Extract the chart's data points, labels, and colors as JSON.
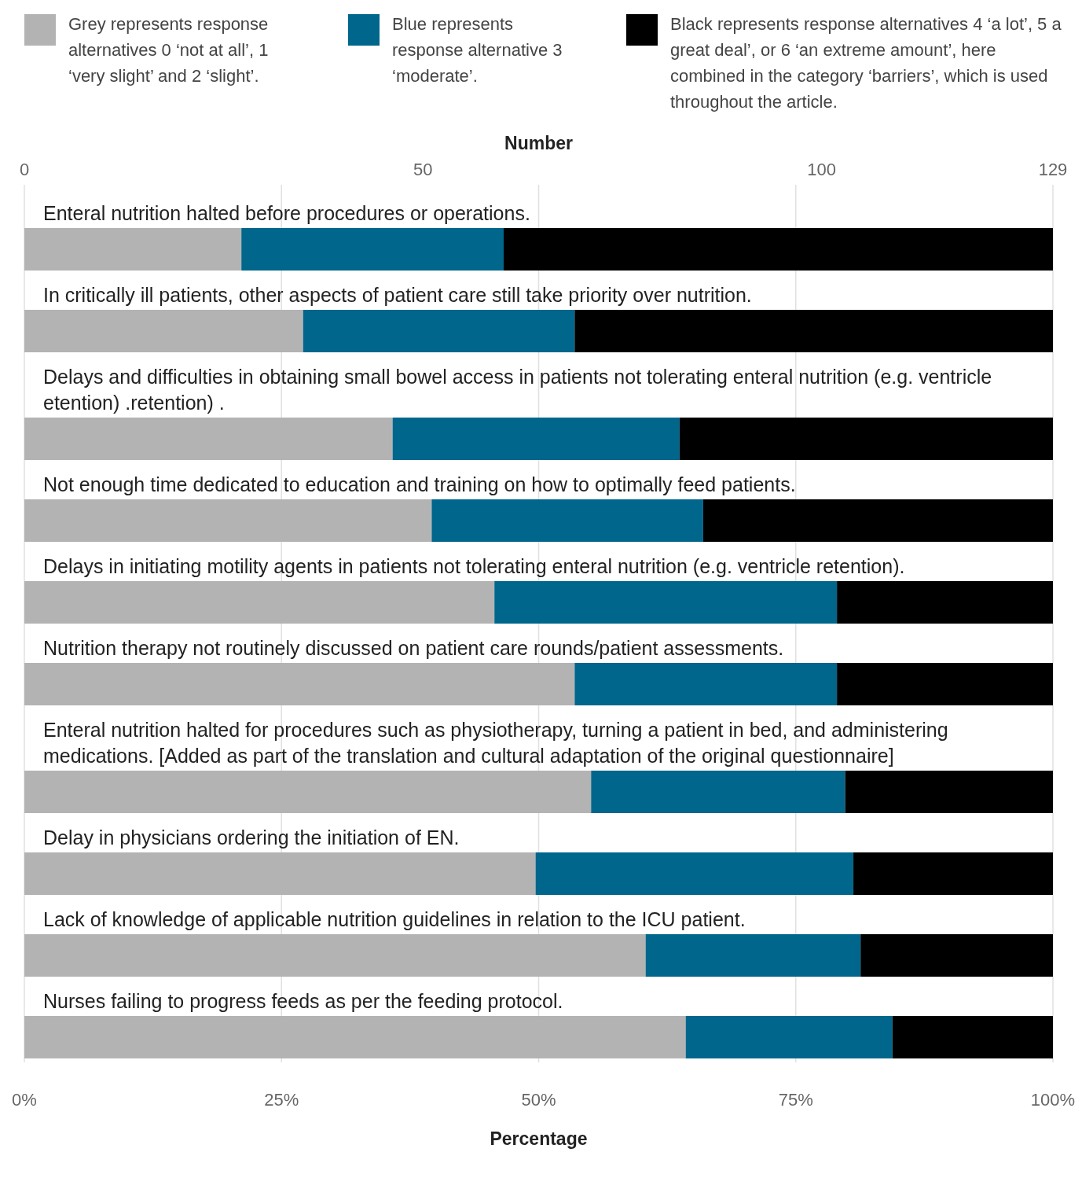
{
  "chart_data": {
    "type": "bar",
    "orientation": "horizontal",
    "stacked": true,
    "categories": [
      "Enteral nutrition halted before procedures or operations.",
      "In critically ill patients, other aspects of patient care still take priority over nutrition.",
      "Delays and difficulties in obtaining small bowel access in patients not tolerating enteral nutrition (e.g. ventricle etention) .retention) .",
      "Not enough time dedicated to education and training on how to optimally feed patients.",
      "Delays in initiating motility agents in patients not tolerating enteral nutrition (e.g. ventricle retention).",
      "Nutrition therapy not routinely discussed on patient care rounds/patient assessments.",
      "Enteral nutrition halted for procedures such as physiotherapy, turning a patient in bed, and administering medications. [Added as part of the translation and cultural adaptation of the original questionnaire]",
      "Delay in physicians ordering the initiation of EN.",
      "Lack of knowledge of applicable nutrition guidelines in relation to the ICU patient.",
      "Nurses failing to progress feeds as per the feeding protocol."
    ],
    "series": [
      {
        "name": "Grey represents response alternatives 0 ‘not at all’, 1 ‘very slight’ and 2 ‘slight’.",
        "color": "#b3b3b3",
        "values": [
          21.1,
          27.1,
          35.8,
          39.6,
          45.7,
          53.5,
          55.1,
          49.7,
          60.4,
          64.3
        ]
      },
      {
        "name": "Blue represents response alternative 3 ‘moderate’.",
        "color": "#00668c",
        "values": [
          25.5,
          26.4,
          27.9,
          26.4,
          33.3,
          25.5,
          24.7,
          30.9,
          20.9,
          20.1
        ]
      },
      {
        "name": "Black represents response alternatives 4 ‘a lot’, 5 a great deal’, or 6 ‘an extreme amount’, here combined in the category ‘barriers’, which is used throughout the article.",
        "color": "#000000",
        "values": [
          53.4,
          46.5,
          36.3,
          34.0,
          21.0,
          21.0,
          20.2,
          19.4,
          18.7,
          15.6
        ]
      }
    ],
    "xlim": [
      0,
      100
    ],
    "xticks": [
      {
        "value": 0,
        "label": "0%"
      },
      {
        "value": 25,
        "label": "25%"
      },
      {
        "value": 50,
        "label": "50%"
      },
      {
        "value": 75,
        "label": "75%"
      },
      {
        "value": 100,
        "label": "100%"
      }
    ],
    "xlabel": "Percentage",
    "x2lim": [
      0,
      129
    ],
    "x2ticks": [
      0,
      50,
      100,
      129
    ],
    "x2label": "Number",
    "grid": "x",
    "legend": "top"
  }
}
